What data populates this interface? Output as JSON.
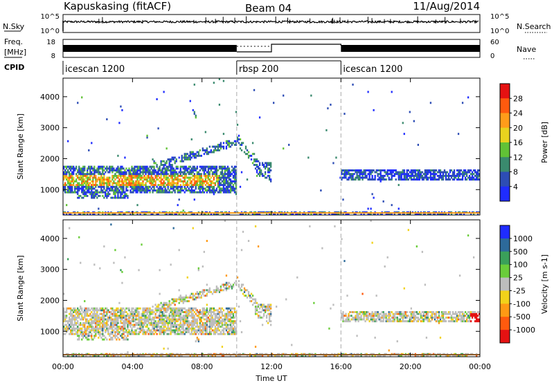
{
  "header": {
    "station": "Kapuskasing (fitACF)",
    "beam": "Beam 04",
    "date": "11/Aug/2014"
  },
  "panels": {
    "nsky": {
      "label": "N.Sky",
      "ticks": [
        "10^5",
        "10^0"
      ],
      "right_label": "N.Search",
      "right_ticks": [
        "10^5",
        "10^0"
      ]
    },
    "freq": {
      "label_top": "Freq.",
      "label_unit": "[MHz]",
      "ticks": [
        "18",
        "8"
      ],
      "right_label": "Nave",
      "right_ticks": [
        "60",
        "0"
      ]
    },
    "cpid": {
      "label": "CPID",
      "segments": [
        {
          "name": "icescan 1200",
          "start": 0,
          "end": 10
        },
        {
          "name": "rbsp 200",
          "start": 10,
          "end": 16
        },
        {
          "name": "icescan 1200",
          "start": 16,
          "end": 24
        }
      ]
    }
  },
  "chart_data": [
    {
      "type": "heatmap",
      "name": "power",
      "ylabel": "Slant Range [km]",
      "ylim": [
        180,
        4600
      ],
      "yticks": [
        1000,
        2000,
        3000,
        4000
      ],
      "colorbar": {
        "label": "Power [dB]",
        "ticks": [
          "4",
          "8",
          "12",
          "16",
          "20",
          "24",
          "28"
        ],
        "colors": [
          "#1f2cff",
          "#2d4db5",
          "#3a8a6e",
          "#61c236",
          "#e8d21e",
          "#ff9c1a",
          "#ff5a0e",
          "#e51212"
        ]
      }
    },
    {
      "type": "heatmap",
      "name": "velocity",
      "ylabel": "Slant Range [km]",
      "ylim": [
        180,
        4600
      ],
      "yticks": [
        1000,
        2000,
        3000,
        4000
      ],
      "colorbar": {
        "label": "Velocity [m s-1]",
        "ticks": [
          "1000",
          "500",
          "100",
          "25",
          "-25",
          "-100",
          "-500",
          "-1000"
        ],
        "colors": [
          "#1f2cff",
          "#2d6a9a",
          "#3aa05a",
          "#6acd3a",
          "#bdbdbd",
          "#f2d21a",
          "#ff9a14",
          "#ff5a0e",
          "#e51212"
        ]
      }
    }
  ],
  "time_axis": {
    "xlabel": "Time UT",
    "xlim": [
      0,
      24
    ],
    "ticks": [
      "00:00",
      "04:00",
      "08:00",
      "12:00",
      "16:00",
      "20:00",
      "00:00"
    ]
  }
}
